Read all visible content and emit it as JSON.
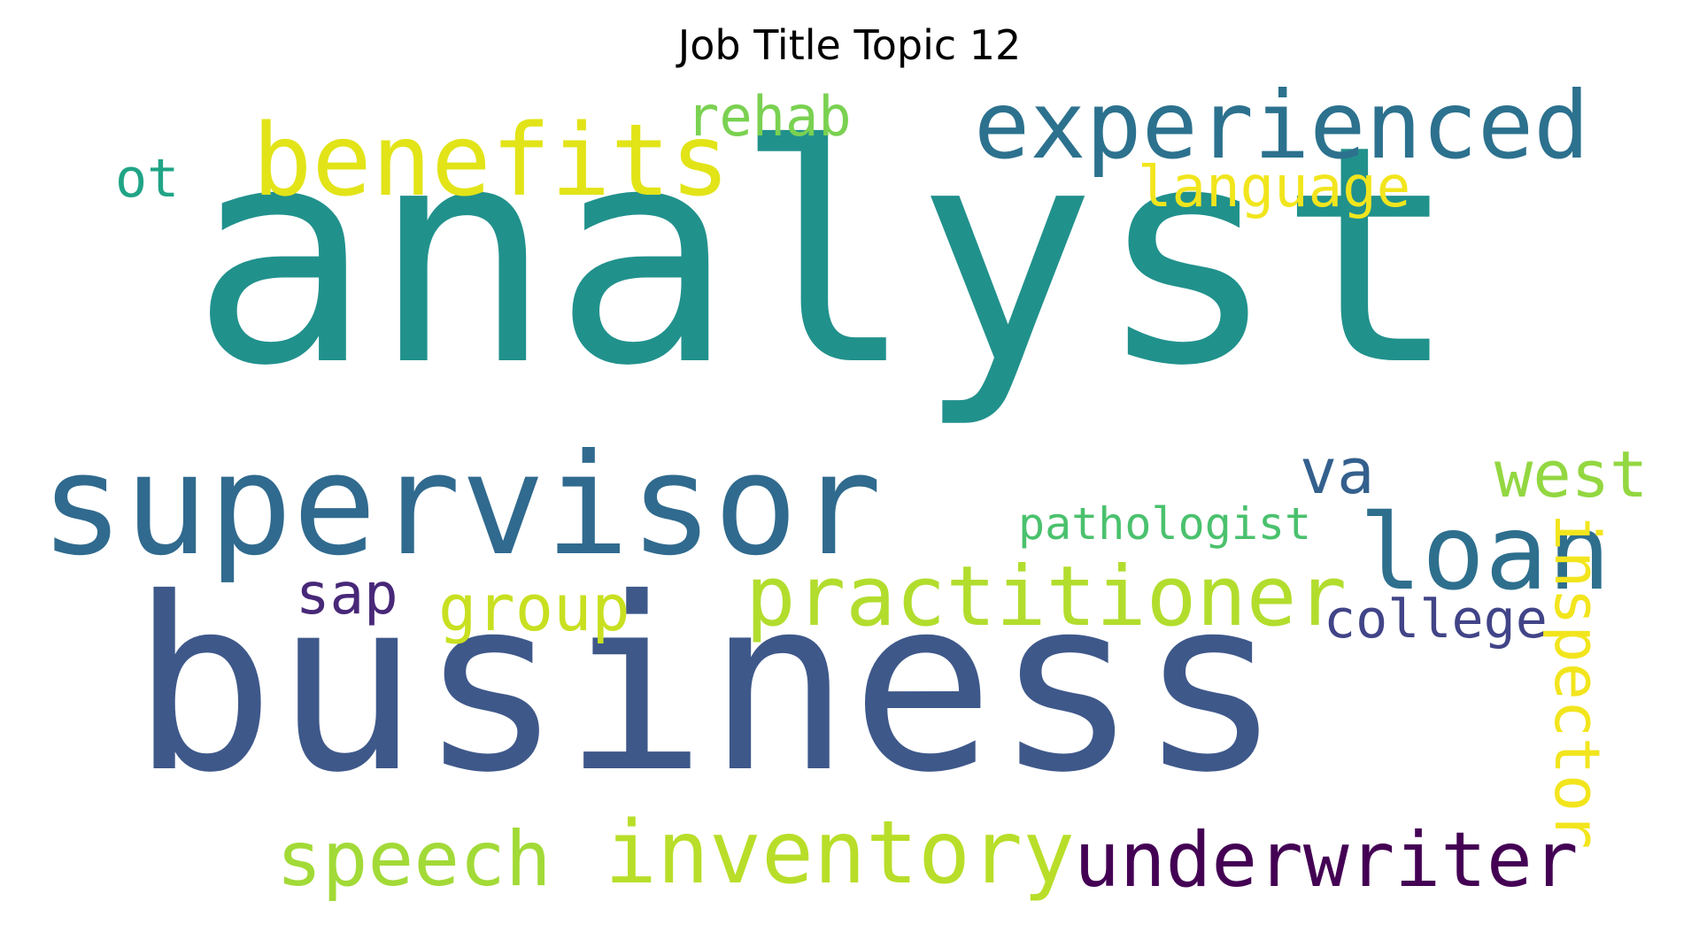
{
  "title": "Job Title Topic 12",
  "words": [
    {
      "text": "analyst",
      "color": "#21918c"
    },
    {
      "text": "business",
      "color": "#3e588a"
    },
    {
      "text": "supervisor",
      "color": "#306a8e"
    },
    {
      "text": "experienced",
      "color": "#2c718e"
    },
    {
      "text": "benefits",
      "color": "#e2e418"
    },
    {
      "text": "loan",
      "color": "#2e6f8e"
    },
    {
      "text": "practitioner",
      "color": "#b2dd2d"
    },
    {
      "text": "inventory",
      "color": "#b8de29"
    },
    {
      "text": "underwriter",
      "color": "#440154"
    },
    {
      "text": "speech",
      "color": "#a2da37"
    },
    {
      "text": "inspector",
      "color": "#f2e51d"
    },
    {
      "text": "group",
      "color": "#c8e020"
    },
    {
      "text": "college",
      "color": "#414487"
    },
    {
      "text": "west",
      "color": "#93d741"
    },
    {
      "text": "language",
      "color": "#f1e51d"
    },
    {
      "text": "rehab",
      "color": "#7ad151"
    },
    {
      "text": "pathologist",
      "color": "#4ac16d"
    },
    {
      "text": "va",
      "color": "#34608d"
    },
    {
      "text": "sap",
      "color": "#482878"
    },
    {
      "text": "ot",
      "color": "#20a486"
    }
  ]
}
